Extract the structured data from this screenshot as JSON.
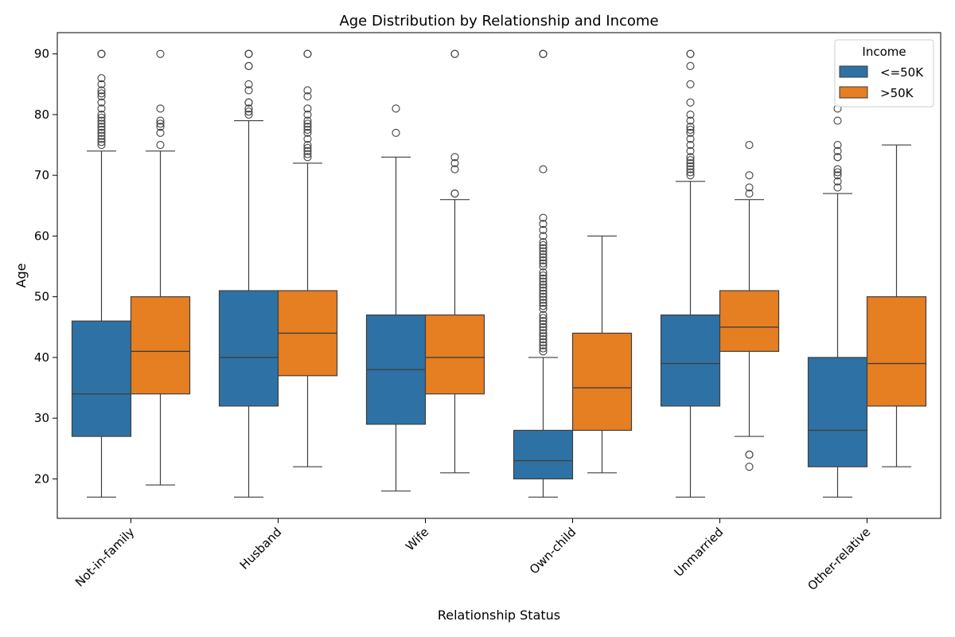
{
  "chart_data": {
    "type": "box",
    "title": "Age Distribution by Relationship and Income",
    "xlabel": "Relationship Status",
    "ylabel": "Age",
    "ylim": [
      13.5,
      93.5
    ],
    "yticks": [
      20,
      30,
      40,
      50,
      60,
      70,
      80,
      90
    ],
    "categories": [
      "Not-in-family",
      "Husband",
      "Wife",
      "Own-child",
      "Unmarried",
      "Other-relative"
    ],
    "legend": {
      "title": "Income",
      "position": "top-right"
    },
    "series": [
      {
        "name": "<=50K",
        "color": "#2e72a5",
        "boxes": [
          {
            "whislo": 17,
            "q1": 27,
            "med": 34,
            "q3": 46,
            "whishi": 74,
            "fliers": [
              75,
              75.5,
              76,
              76.5,
              77,
              77.5,
              78,
              78.5,
              79,
              79.5,
              80,
              81,
              82,
              83,
              83.5,
              84,
              85,
              86,
              90,
              90,
              90
            ]
          },
          {
            "whislo": 17,
            "q1": 32,
            "med": 40,
            "q3": 51,
            "whishi": 79,
            "fliers": [
              80,
              80.5,
              81,
              82,
              82,
              84,
              85,
              88,
              88,
              90,
              90,
              90
            ]
          },
          {
            "whislo": 18,
            "q1": 29,
            "med": 38,
            "q3": 47,
            "whishi": 73,
            "fliers": [
              77,
              81
            ]
          },
          {
            "whislo": 17,
            "q1": 20,
            "med": 23,
            "q3": 28,
            "whishi": 40,
            "fliers": [
              41,
              41.5,
              42,
              42.5,
              43,
              43.5,
              44,
              44.5,
              45,
              45.5,
              46,
              46.5,
              47,
              48,
              48.5,
              49,
              49.5,
              50,
              50.5,
              51,
              51.5,
              52,
              52.5,
              53,
              53.5,
              54,
              55,
              55.5,
              56,
              56.5,
              57,
              57.5,
              58,
              58.5,
              59,
              60,
              61,
              62,
              63,
              71,
              90,
              90,
              90
            ]
          },
          {
            "whislo": 17,
            "q1": 32,
            "med": 39,
            "q3": 47,
            "whishi": 69,
            "fliers": [
              70,
              70.5,
              71,
              71.5,
              72,
              72.5,
              73,
              74,
              75,
              76,
              77,
              77.5,
              78,
              79,
              80,
              82,
              85,
              88,
              90,
              90
            ]
          },
          {
            "whislo": 17,
            "q1": 22,
            "med": 28,
            "q3": 40,
            "whishi": 67,
            "fliers": [
              68,
              69,
              70,
              70.5,
              71,
              73,
              73,
              74,
              75,
              79,
              81
            ]
          }
        ]
      },
      {
        "name": ">50K",
        "color": "#e67e22",
        "boxes": [
          {
            "whislo": 19,
            "q1": 34,
            "med": 41,
            "q3": 50,
            "whishi": 74,
            "fliers": [
              75,
              77,
              78,
              78.5,
              79,
              81,
              90
            ]
          },
          {
            "whislo": 22,
            "q1": 37,
            "med": 44,
            "q3": 51,
            "whishi": 72,
            "fliers": [
              73,
              73.5,
              74,
              74.5,
              75,
              76,
              77,
              77.5,
              78,
              78.5,
              79,
              80,
              81,
              83,
              84,
              90,
              90
            ]
          },
          {
            "whislo": 21,
            "q1": 34,
            "med": 40,
            "q3": 47,
            "whishi": 66,
            "fliers": [
              67,
              67,
              71,
              72,
              73,
              90,
              90
            ]
          },
          {
            "whislo": 21,
            "q1": 28,
            "med": 35,
            "q3": 44,
            "whishi": 60,
            "fliers": []
          },
          {
            "whislo": 27,
            "q1": 41,
            "med": 45,
            "q3": 51,
            "whishi": 66,
            "fliers": [
              22,
              24,
              24,
              67,
              68,
              70,
              75
            ]
          },
          {
            "whislo": 22,
            "q1": 32,
            "med": 39,
            "q3": 50,
            "whishi": 75,
            "fliers": []
          }
        ]
      }
    ]
  }
}
